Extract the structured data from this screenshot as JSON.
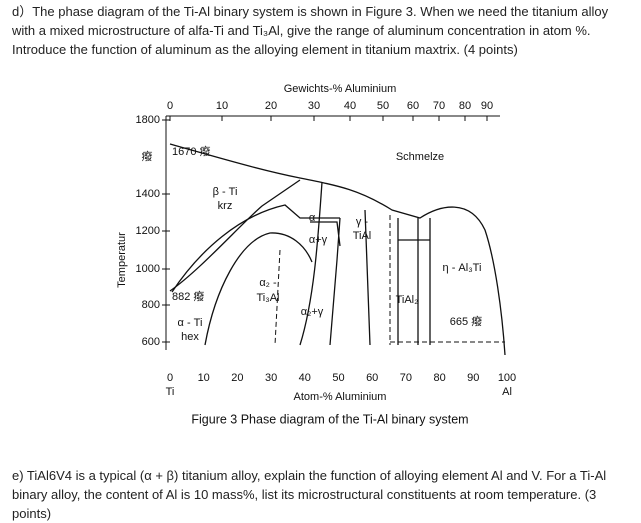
{
  "question_d": "d）The phase diagram of the Ti-Al binary system is shown in Figure 3. When we need the titanium alloy with a mixed microstructure of alfa-Ti and Ti₃Al, give the range of aluminum concentration in atom %. Introduce the function of aluminum as the alloying element in titanium maxtrix. (4 points)",
  "figure": {
    "top_axis": {
      "title": "Gewichts-% Aluminium",
      "ticks": [
        "0",
        "10",
        "20",
        "30",
        "40",
        "50",
        "60",
        "70",
        "80",
        "90"
      ]
    },
    "y_axis": {
      "title": "Temperatur",
      "ticks": [
        "1800",
        "1400",
        "1200",
        "1000",
        "800",
        "600"
      ]
    },
    "bottom_axis": {
      "title": "Atom-% Aluminium",
      "ticks": [
        "0",
        "10",
        "20",
        "30",
        "40",
        "50",
        "60",
        "70",
        "80",
        "90",
        "100"
      ],
      "end_labels": [
        "Ti",
        "Al"
      ]
    },
    "labels": [
      "癈",
      "1670 癈",
      "Schmelze",
      "β - Ti",
      "krz",
      "α",
      "α+γ",
      "γ -",
      "TiAl",
      "α₂ -",
      "Ti₃Al",
      "α₂+γ",
      "TiAl₂",
      "η - Al₃Ti",
      "882 癈",
      "α - Ti",
      "hex",
      "665 癈"
    ],
    "caption": "Figure 3 Phase diagram of the Ti-Al binary system"
  },
  "question_e": "e) TiAl6V4 is a typical (α + β) titanium alloy, explain the function of alloying element Al and V. For a Ti-Al binary alloy, the content of Al is 10 mass%, list its microstructural constituents at room temperature. (3 points)"
}
